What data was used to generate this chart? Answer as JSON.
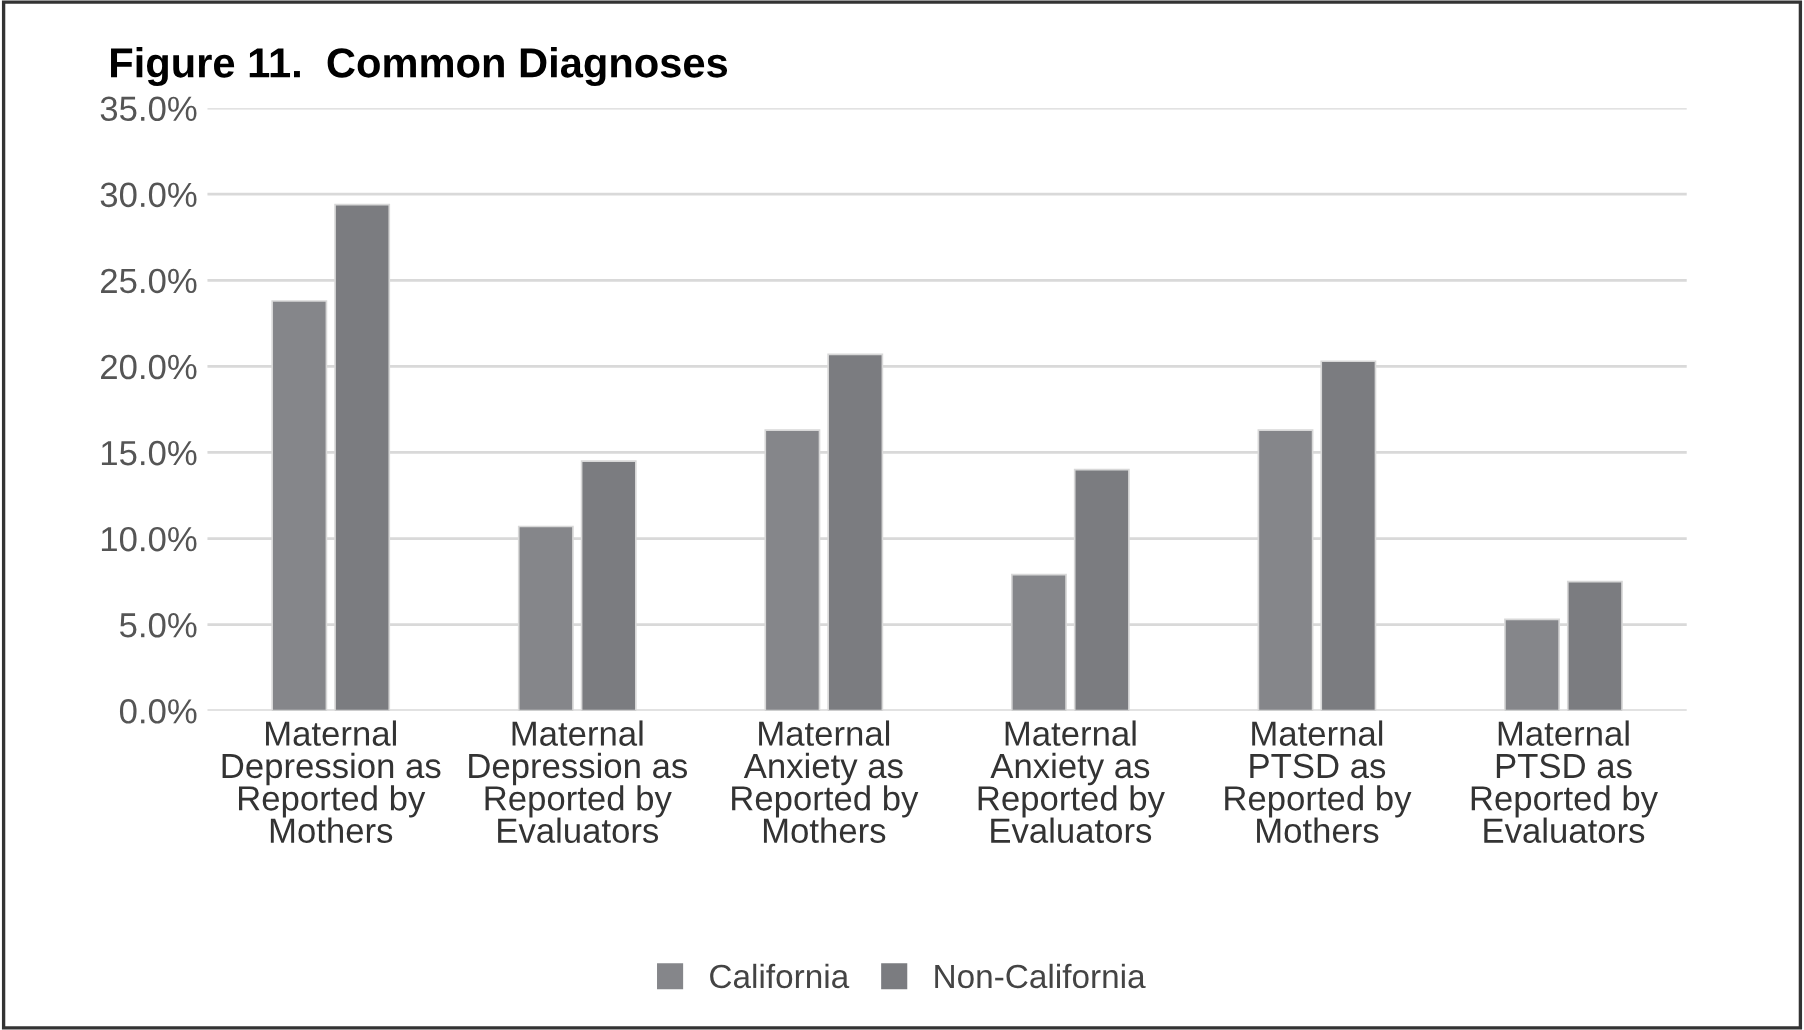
{
  "chart_data": {
    "type": "bar",
    "title": "Figure 11.  Common Diagnoses",
    "categories": [
      "Maternal\nDepression as\nReported by\nMothers",
      "Maternal\nDepression as\nReported by\nEvaluators",
      "Maternal\nAnxiety as\nReported by\nMothers",
      "Maternal\nAnxiety as\nReported by\nEvaluators",
      "Maternal\nPTSD as\nReported by\nMothers",
      "Maternal\nPTSD as\nReported by\nEvaluators"
    ],
    "series": [
      {
        "name": "California",
        "color": "#85868a",
        "values": [
          23.8,
          10.7,
          16.3,
          7.9,
          16.3,
          5.3
        ]
      },
      {
        "name": "Non-California",
        "color": "#7b7c80",
        "values": [
          29.4,
          14.5,
          20.7,
          14.0,
          20.3,
          7.5
        ]
      }
    ],
    "ylim": [
      0,
      35
    ],
    "yticks": [
      {
        "value": 0,
        "label": "0.0%"
      },
      {
        "value": 5,
        "label": "5.0%"
      },
      {
        "value": 10,
        "label": "10.0%"
      },
      {
        "value": 15,
        "label": "15.0%"
      },
      {
        "value": 20,
        "label": "20.0%"
      },
      {
        "value": 25,
        "label": "25.0%"
      },
      {
        "value": 30,
        "label": "30.0%"
      },
      {
        "value": 35,
        "label": "35.0%"
      }
    ],
    "grid": "y",
    "legend": "bottom"
  }
}
